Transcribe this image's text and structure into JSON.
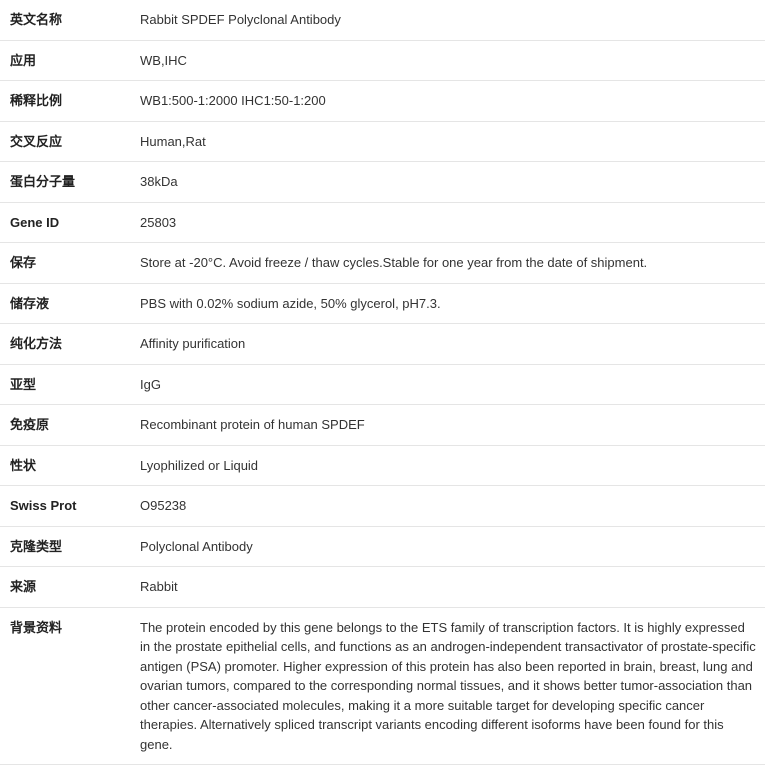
{
  "rows": [
    {
      "label": "英文名称",
      "value": "Rabbit SPDEF Polyclonal Antibody"
    },
    {
      "label": "应用",
      "value": "WB,IHC"
    },
    {
      "label": "稀释比例",
      "value": "WB1:500-1:2000 IHC1:50-1:200"
    },
    {
      "label": "交叉反应",
      "value": "Human,Rat"
    },
    {
      "label": "蛋白分子量",
      "value": "38kDa"
    },
    {
      "label": "Gene ID",
      "value": "25803"
    },
    {
      "label": "保存",
      "value": "Store at -20°C. Avoid freeze / thaw cycles.Stable for one year from the date of shipment."
    },
    {
      "label": "储存液",
      "value": "PBS with 0.02% sodium azide, 50% glycerol, pH7.3."
    },
    {
      "label": "纯化方法",
      "value": "Affinity purification"
    },
    {
      "label": "亚型",
      "value": "IgG"
    },
    {
      "label": "免疫原",
      "value": "Recombinant protein of human SPDEF"
    },
    {
      "label": "性状",
      "value": "Lyophilized or Liquid"
    },
    {
      "label": "Swiss Prot",
      "value": "O95238"
    },
    {
      "label": "克隆类型",
      "value": "Polyclonal Antibody"
    },
    {
      "label": "来源",
      "value": "Rabbit"
    },
    {
      "label": "背景资料",
      "value": "The protein encoded by this gene belongs to the ETS family of transcription factors. It is highly expressed in the prostate epithelial cells, and functions as an androgen-independent transactivator of prostate-specific antigen (PSA) promoter. Higher expression of this protein has also been reported in brain, breast, lung and ovarian tumors, compared to the corresponding normal tissues, and it shows better tumor-association than other cancer-associated molecules, making it a more suitable target for developing specific cancer therapies. Alternatively spliced transcript variants encoding different isoforms have been found for this gene."
    }
  ],
  "style": {
    "border_color": "#e5e5e5",
    "label_color": "#222222",
    "value_color": "#333333",
    "font_size": 13,
    "row_padding_v": 10,
    "label_col_width": 130,
    "background": "#ffffff"
  }
}
